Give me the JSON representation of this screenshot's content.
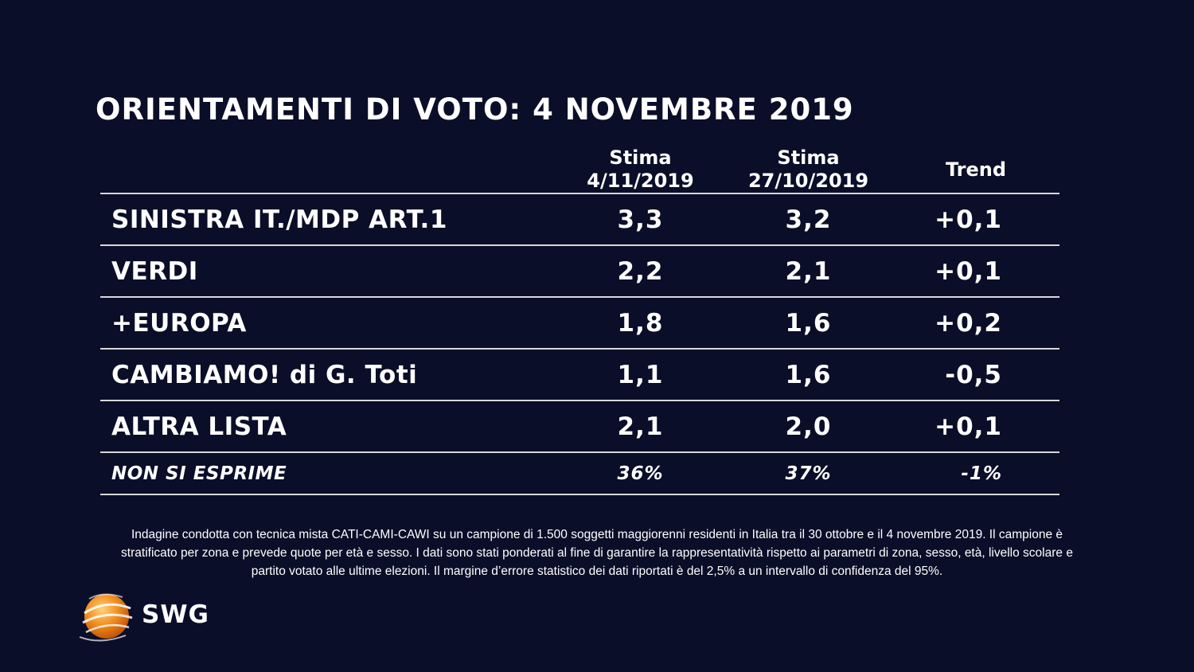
{
  "title": "ORIENTAMENTI DI VOTO: 4 NOVEMBRE 2019",
  "chart_data": {
    "type": "table",
    "columns": [
      {
        "line1": "",
        "line2": ""
      },
      {
        "line1": "Stima",
        "line2": "4/11/2019"
      },
      {
        "line1": "Stima",
        "line2": "27/10/2019"
      },
      {
        "line1": "Trend",
        "line2": ""
      }
    ],
    "rows": [
      {
        "party": "SINISTRA IT./MDP ART.1",
        "current": "3,3",
        "previous": "3,2",
        "trend": "+0,1"
      },
      {
        "party": "VERDI",
        "current": "2,2",
        "previous": "2,1",
        "trend": "+0,1"
      },
      {
        "party": "+EUROPA",
        "current": "1,8",
        "previous": "1,6",
        "trend": "+0,2"
      },
      {
        "party": "CAMBIAMO! di G. Toti",
        "current": "1,1",
        "previous": "1,6",
        "trend": "-0,5"
      },
      {
        "party": "ALTRA LISTA",
        "current": "2,1",
        "previous": "2,0",
        "trend": "+0,1"
      },
      {
        "party": "NON SI ESPRIME",
        "current": "36%",
        "previous": "37%",
        "trend": "-1%"
      }
    ]
  },
  "footnote": "Indagine condotta con tecnica mista CATI-CAMI-CAWI su un campione di 1.500 soggetti maggiorenni residenti in Italia tra il 30 ottobre e il 4 novembre 2019. Il campione è stratificato per zona e prevede quote per età e sesso. I dati sono stati ponderati al fine di garantire la rappresentatività rispetto ai parametri di zona, sesso, età, livello scolare e partito votato alle ultime elezioni. Il margine d’errore statistico dei dati riportati è del 2,5% a un intervallo di confidenza del 95%.",
  "logo": {
    "text": "SWG",
    "icon": "globe-logo-icon",
    "color": "#f28c1e"
  },
  "colors": {
    "background": "#0a0e28",
    "text": "#ffffff",
    "rule": "#d8d8d8"
  }
}
